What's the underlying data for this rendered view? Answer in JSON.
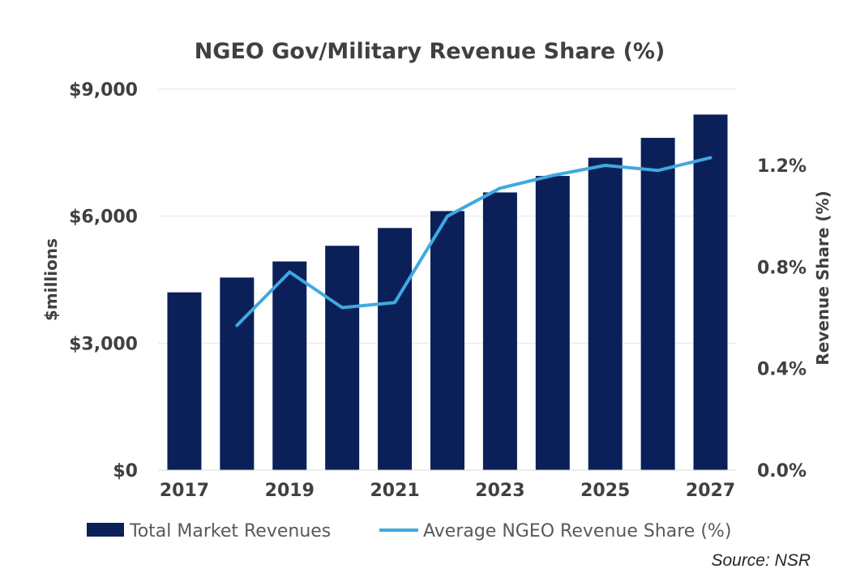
{
  "chart_data": {
    "type": "bar",
    "title": "NGEO Gov/Military Revenue Share (%)",
    "ylabel": "$millions",
    "y2label": "Revenue Share (%)",
    "x": [
      2017,
      2018,
      2019,
      2020,
      2021,
      2022,
      2023,
      2024,
      2025,
      2026,
      2027
    ],
    "x_tick_labels": [
      "2017",
      "2019",
      "2021",
      "2023",
      "2025",
      "2027"
    ],
    "x_tick_years": [
      2017,
      2019,
      2021,
      2023,
      2025,
      2027
    ],
    "ylim": [
      0,
      9000
    ],
    "y_ticks": [
      0,
      3000,
      6000,
      9000
    ],
    "y_tick_labels": [
      "$0",
      "$3,000",
      "$6,000",
      "$9,000"
    ],
    "y2lim": [
      0,
      1.5
    ],
    "y2_ticks": [
      0,
      0.4,
      0.8,
      1.2
    ],
    "y2_tick_labels": [
      "0.0%",
      "0.4%",
      "0.8%",
      "1.2%"
    ],
    "grid": true,
    "legend_position": "bottom",
    "series": [
      {
        "name": "Total Market Revenues",
        "type": "bar",
        "axis": "left",
        "color": "#0b2059",
        "x": [
          2017,
          2018,
          2019,
          2020,
          2021,
          2022,
          2023,
          2024,
          2025,
          2026,
          2027
        ],
        "values": [
          4200,
          4550,
          4930,
          5300,
          5720,
          6120,
          6560,
          6950,
          7380,
          7850,
          8400
        ]
      },
      {
        "name": "Average NGEO Revenue Share (%)",
        "type": "line",
        "axis": "right",
        "color": "#3fa9e0",
        "x": [
          2018,
          2019,
          2020,
          2021,
          2022,
          2023,
          2024,
          2025,
          2026,
          2027
        ],
        "values": [
          0.57,
          0.78,
          0.64,
          0.66,
          1.0,
          1.11,
          1.16,
          1.2,
          1.18,
          1.23
        ]
      }
    ],
    "source": "Source: NSR"
  }
}
